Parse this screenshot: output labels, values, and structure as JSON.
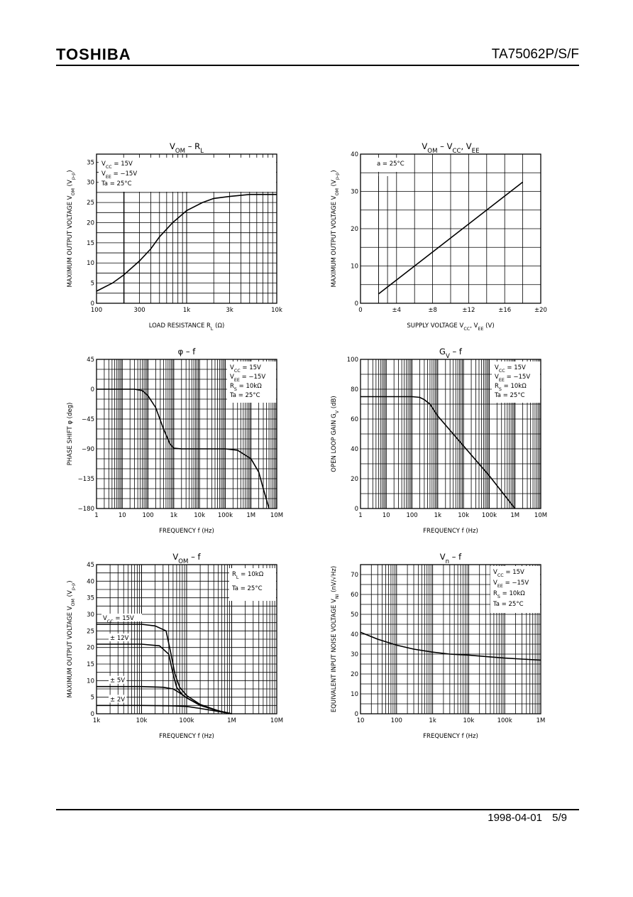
{
  "header": {
    "brand": "TOSHIBA",
    "part_number": "TA75062P/S/F"
  },
  "footer": {
    "date": "1998-04-01",
    "page": "5/9"
  },
  "chart_data": [
    {
      "type": "line",
      "title": "V_OM – R_L",
      "xlabel": "LOAD RESISTANCE R_L (Ω)",
      "ylabel": "MAXIMUM OUTPUT VOLTAGE V_OM (V_p-p)",
      "xscale": "log",
      "xlim": [
        100,
        10000
      ],
      "ylim": [
        0,
        37
      ],
      "x_ticks": [
        100,
        300,
        1000,
        3000,
        10000
      ],
      "x_tick_labels": [
        "100",
        "300",
        "1k",
        "3k",
        "10k"
      ],
      "y_ticks": [
        0,
        5,
        10,
        15,
        20,
        25,
        30,
        35
      ],
      "y_tick_labels": [
        "0",
        "5",
        "10",
        "15",
        "20",
        "25",
        "30",
        "35"
      ],
      "conditions": [
        "V_CC = 15V",
        "V_EE = −15V",
        "Ta = 25°C"
      ],
      "series": [
        {
          "x": [
            100,
            150,
            200,
            300,
            400,
            500,
            700,
            1000,
            1500,
            2000,
            3000,
            5000,
            7000,
            10000
          ],
          "y": [
            3,
            5,
            7,
            10.5,
            13.5,
            16.5,
            20,
            23,
            25,
            26,
            26.5,
            27,
            27,
            27
          ]
        }
      ]
    },
    {
      "type": "line",
      "title": "V_OM – V_CC, V_EE",
      "xlabel": "SUPPLY VOLTAGE V_CC, V_EE (V)",
      "ylabel": "MAXIMUM OUTPUT VOLTAGE V_OM (V_p-p)",
      "xscale": "linear",
      "xlim": [
        0,
        20
      ],
      "ylim": [
        0,
        40
      ],
      "x_ticks": [
        0,
        4,
        8,
        12,
        16,
        20
      ],
      "x_tick_labels": [
        "0",
        "±4",
        "±8",
        "±12",
        "±16",
        "±20"
      ],
      "y_ticks": [
        0,
        10,
        20,
        30,
        40
      ],
      "y_tick_labels": [
        "0",
        "10",
        "20",
        "30",
        "40"
      ],
      "conditions": [
        "a = 25°C"
      ],
      "series": [
        {
          "x": [
            2,
            18
          ],
          "y": [
            2.5,
            32.5
          ]
        }
      ]
    },
    {
      "type": "line",
      "title": "φ – f",
      "xlabel": "FREQUENCY f (Hz)",
      "ylabel": "PHASE SHIFT φ (deg)",
      "xscale": "log",
      "xlim": [
        1,
        10000000
      ],
      "ylim": [
        -180,
        45
      ],
      "x_ticks": [
        1,
        10,
        100,
        1000,
        10000,
        100000,
        1000000,
        10000000
      ],
      "x_tick_labels": [
        "1",
        "10",
        "100",
        "1k",
        "10k",
        "100k",
        "1M",
        "10M"
      ],
      "y_ticks": [
        -180,
        -135,
        -90,
        -45,
        0,
        45
      ],
      "y_tick_labels": [
        "−180",
        "−135",
        "−90",
        "−45",
        "0",
        "45"
      ],
      "conditions": [
        "V_CC = 15V",
        "V_EE = −15V",
        "R_S = 10kΩ",
        "Ta = 25°C"
      ],
      "series": [
        {
          "x": [
            1,
            30,
            60,
            100,
            200,
            400,
            700,
            1000,
            2000,
            10000,
            100000,
            300000,
            1000000,
            2000000,
            3000000,
            5000000
          ],
          "y": [
            0,
            0,
            -2,
            -10,
            -28,
            -60,
            -82,
            -89,
            -90,
            -90,
            -90,
            -92,
            -105,
            -125,
            -150,
            -180
          ]
        }
      ]
    },
    {
      "type": "line",
      "title": "G_V – f",
      "xlabel": "FREQUENCY f (Hz)",
      "ylabel": "OPEN LOOP GAIN G_V (dB)",
      "xscale": "log",
      "xlim": [
        1,
        10000000
      ],
      "ylim": [
        0,
        100
      ],
      "x_ticks": [
        1,
        10,
        100,
        1000,
        10000,
        100000,
        1000000,
        10000000
      ],
      "x_tick_labels": [
        "1",
        "10",
        "100",
        "1k",
        "10k",
        "100k",
        "1M",
        "10M"
      ],
      "y_ticks": [
        0,
        20,
        40,
        60,
        80,
        100
      ],
      "y_tick_labels": [
        "0",
        "20",
        "40",
        "60",
        "80",
        "100"
      ],
      "conditions": [
        "V_CC = 15V",
        "V_EE = −15V",
        "R_S = 10kΩ",
        "Ta = 25°C"
      ],
      "series": [
        {
          "x": [
            1,
            100,
            200,
            300,
            500,
            1000,
            10000,
            100000,
            1000000
          ],
          "y": [
            75,
            75,
            74.5,
            73,
            70,
            62,
            42,
            22,
            0
          ]
        }
      ]
    },
    {
      "type": "line",
      "title": "V_OM – f",
      "xlabel": "FREQUENCY f (Hz)",
      "ylabel": "MAXIMUM OUTPUT VOLTAGE V_OM (V_p-p)",
      "xscale": "log",
      "xlim": [
        1000,
        10000000
      ],
      "ylim": [
        0,
        45
      ],
      "x_ticks": [
        1000,
        10000,
        100000,
        1000000,
        10000000
      ],
      "x_tick_labels": [
        "1k",
        "10k",
        "100k",
        "1M",
        "10M"
      ],
      "y_ticks": [
        0,
        5,
        10,
        15,
        20,
        25,
        30,
        35,
        40,
        45
      ],
      "y_tick_labels": [
        "0",
        "5",
        "10",
        "15",
        "20",
        "25",
        "30",
        "35",
        "40",
        "45"
      ],
      "conditions": [
        "R_L = 10kΩ",
        "Ta = 25°C"
      ],
      "series": [
        {
          "name": "V_CC = 15V",
          "x": [
            1000,
            10000,
            20000,
            35000,
            45000,
            55000,
            70000,
            100000,
            200000,
            500000,
            1000000
          ],
          "y": [
            27,
            27,
            26.5,
            25,
            18,
            12,
            8,
            5.5,
            2.8,
            0.9,
            0
          ]
        },
        {
          "name": "± 12V",
          "x": [
            1000,
            10000,
            25000,
            40000,
            50000,
            60000,
            80000,
            100000,
            200000,
            500000,
            1000000
          ],
          "y": [
            21,
            21,
            20.5,
            18,
            12,
            8,
            5.8,
            4.8,
            2.6,
            0.9,
            0
          ]
        },
        {
          "name": "± 5V",
          "x": [
            1000,
            10000,
            30000,
            50000,
            70000,
            100000,
            200000,
            500000,
            1000000
          ],
          "y": [
            8.2,
            8.2,
            8,
            7.5,
            6.3,
            4.8,
            2.5,
            0.9,
            0
          ]
        },
        {
          "name": "± 2V",
          "x": [
            1000,
            10000,
            50000,
            100000,
            200000,
            500000,
            1000000
          ],
          "y": [
            2.5,
            2.5,
            2.4,
            2.2,
            1.6,
            0.7,
            0
          ]
        }
      ]
    },
    {
      "type": "line",
      "title": "V_n – f",
      "xlabel": "FREQUENCY f (Hz)",
      "ylabel": "EQUIVALENT INPUT NOISE VOLTAGE V_NI (nV/√Hz)",
      "xscale": "log",
      "xlim": [
        10,
        1000000
      ],
      "ylim": [
        0,
        75
      ],
      "x_ticks": [
        10,
        100,
        1000,
        10000,
        100000,
        1000000
      ],
      "x_tick_labels": [
        "10",
        "100",
        "1k",
        "10k",
        "100k",
        "1M"
      ],
      "y_ticks": [
        0,
        10,
        20,
        30,
        40,
        50,
        60,
        70
      ],
      "y_tick_labels": [
        "0",
        "10",
        "20",
        "30",
        "40",
        "50",
        "60",
        "70"
      ],
      "conditions": [
        "V_CC = 15V",
        "V_EE = −15V",
        "R_S = 10kΩ",
        "Ta = 25°C"
      ],
      "series": [
        {
          "x": [
            10,
            30,
            100,
            300,
            1000,
            3000,
            10000,
            30000,
            100000,
            300000,
            1000000
          ],
          "y": [
            41,
            37.5,
            34.5,
            32.5,
            31,
            30,
            29.5,
            28.8,
            28,
            27.5,
            27
          ]
        }
      ]
    }
  ]
}
